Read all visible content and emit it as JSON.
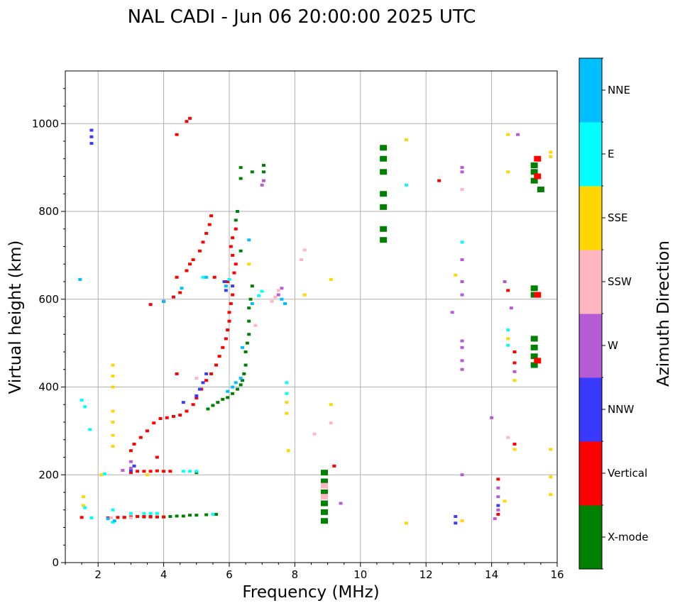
{
  "chart_data": {
    "type": "scatter",
    "title": "NAL CADI - Jun 06 20:00:00 2025 UTC",
    "xlabel": "Frequency (MHz)",
    "ylabel": "Virtual height (km)",
    "xlim": [
      1,
      16
    ],
    "ylim": [
      0,
      1120
    ],
    "xticks": [
      "2",
      "4",
      "6",
      "8",
      "10",
      "12",
      "14",
      "16"
    ],
    "yticks": [
      "0",
      "200",
      "400",
      "600",
      "800",
      "1000"
    ],
    "grid": true,
    "colorbar": {
      "label": "Azimuth Direction",
      "categories": [
        "X-mode",
        "Vertical",
        "NNW",
        "W",
        "SSW",
        "SSE",
        "E",
        "NNE"
      ],
      "colors": [
        "#008000",
        "#ff0000",
        "#3a3aff",
        "#b65ad6",
        "#ffb6c1",
        "#ffd700",
        "#00ffff",
        "#00bfff"
      ]
    },
    "series": [
      {
        "name": "X-mode",
        "points": [
          [
            2.8,
            103
          ],
          [
            3.0,
            104
          ],
          [
            3.2,
            105
          ],
          [
            3.4,
            104
          ],
          [
            3.6,
            105
          ],
          [
            3.8,
            104
          ],
          [
            4.0,
            104
          ],
          [
            4.2,
            105
          ],
          [
            4.4,
            106
          ],
          [
            4.6,
            106
          ],
          [
            4.8,
            108
          ],
          [
            5.0,
            108
          ],
          [
            5.3,
            109
          ],
          [
            5.6,
            110
          ],
          [
            5.0,
            205
          ],
          [
            5.35,
            350
          ],
          [
            5.5,
            358
          ],
          [
            5.65,
            365
          ],
          [
            5.8,
            372
          ],
          [
            5.95,
            376
          ],
          [
            6.1,
            385
          ],
          [
            6.25,
            395
          ],
          [
            6.35,
            405
          ],
          [
            6.4,
            415
          ],
          [
            6.45,
            430
          ],
          [
            6.5,
            450
          ],
          [
            6.5,
            480
          ],
          [
            6.55,
            500
          ],
          [
            6.6,
            520
          ],
          [
            6.6,
            550
          ],
          [
            6.6,
            580
          ],
          [
            6.65,
            600
          ],
          [
            6.7,
            630
          ],
          [
            6.35,
            710
          ],
          [
            6.2,
            780
          ],
          [
            6.25,
            800
          ],
          [
            6.35,
            900
          ],
          [
            6.35,
            875
          ],
          [
            6.7,
            890
          ],
          [
            7.05,
            905
          ],
          [
            7.05,
            890
          ],
          [
            8.9,
            95
          ],
          [
            8.9,
            115
          ],
          [
            8.9,
            135
          ],
          [
            8.9,
            160
          ],
          [
            8.9,
            185
          ],
          [
            8.9,
            205
          ],
          [
            10.7,
            735
          ],
          [
            10.7,
            760
          ],
          [
            10.7,
            810
          ],
          [
            10.7,
            840
          ],
          [
            10.7,
            890
          ],
          [
            10.7,
            920
          ],
          [
            10.7,
            945
          ],
          [
            15.3,
            450
          ],
          [
            15.3,
            470
          ],
          [
            15.3,
            490
          ],
          [
            15.3,
            510
          ],
          [
            15.3,
            610
          ],
          [
            15.3,
            625
          ],
          [
            15.3,
            870
          ],
          [
            15.3,
            890
          ],
          [
            15.3,
            905
          ],
          [
            15.5,
            850
          ]
        ]
      },
      {
        "name": "Vertical",
        "points": [
          [
            1.5,
            103
          ],
          [
            2.3,
            102
          ],
          [
            2.6,
            103
          ],
          [
            2.8,
            103
          ],
          [
            3.0,
            104
          ],
          [
            3.2,
            105
          ],
          [
            3.4,
            105
          ],
          [
            3.6,
            104
          ],
          [
            3.8,
            104
          ],
          [
            4.0,
            104
          ],
          [
            3.0,
            205
          ],
          [
            3.2,
            208
          ],
          [
            3.4,
            208
          ],
          [
            3.6,
            208
          ],
          [
            3.8,
            209
          ],
          [
            4.0,
            208
          ],
          [
            4.2,
            208
          ],
          [
            3.0,
            255
          ],
          [
            3.1,
            270
          ],
          [
            3.3,
            285
          ],
          [
            3.5,
            300
          ],
          [
            3.7,
            318
          ],
          [
            3.9,
            328
          ],
          [
            4.1,
            330
          ],
          [
            4.3,
            333
          ],
          [
            4.5,
            336
          ],
          [
            4.7,
            345
          ],
          [
            4.9,
            360
          ],
          [
            5.0,
            375
          ],
          [
            5.15,
            395
          ],
          [
            5.3,
            415
          ],
          [
            5.45,
            430
          ],
          [
            4.4,
            430
          ],
          [
            3.8,
            240
          ],
          [
            5.6,
            450
          ],
          [
            5.7,
            470
          ],
          [
            5.8,
            490
          ],
          [
            5.9,
            510
          ],
          [
            5.95,
            530
          ],
          [
            6.0,
            550
          ],
          [
            6.0,
            570
          ],
          [
            6.05,
            590
          ],
          [
            6.1,
            610
          ],
          [
            5.95,
            640
          ],
          [
            5.55,
            650
          ],
          [
            6.15,
            660
          ],
          [
            6.2,
            680
          ],
          [
            6.1,
            700
          ],
          [
            6.05,
            720
          ],
          [
            6.1,
            740
          ],
          [
            6.2,
            760
          ],
          [
            3.6,
            588
          ],
          [
            4.0,
            595
          ],
          [
            4.3,
            605
          ],
          [
            4.5,
            615
          ],
          [
            4.4,
            650
          ],
          [
            4.7,
            665
          ],
          [
            4.8,
            680
          ],
          [
            4.9,
            690
          ],
          [
            5.1,
            710
          ],
          [
            5.2,
            730
          ],
          [
            5.3,
            750
          ],
          [
            5.4,
            770
          ],
          [
            5.45,
            790
          ],
          [
            4.7,
            1005
          ],
          [
            4.8,
            1012
          ],
          [
            4.4,
            975
          ],
          [
            9.2,
            220
          ],
          [
            12.4,
            870
          ],
          [
            14.2,
            190
          ],
          [
            14.2,
            110
          ],
          [
            14.5,
            620
          ],
          [
            14.7,
            270
          ],
          [
            14.7,
            455
          ],
          [
            14.7,
            480
          ],
          [
            15.4,
            460
          ],
          [
            15.4,
            610
          ],
          [
            15.4,
            880
          ],
          [
            15.4,
            920
          ]
        ]
      },
      {
        "name": "NNW",
        "points": [
          [
            3.0,
            210
          ],
          [
            3.1,
            220
          ],
          [
            4.6,
            365
          ],
          [
            5.0,
            380
          ],
          [
            5.1,
            395
          ],
          [
            5.2,
            410
          ],
          [
            5.3,
            430
          ],
          [
            5.85,
            640
          ],
          [
            5.9,
            620
          ],
          [
            6.1,
            630
          ],
          [
            12.9,
            90
          ],
          [
            12.9,
            105
          ],
          [
            14.2,
            130
          ],
          [
            1.8,
            955
          ],
          [
            1.8,
            970
          ],
          [
            1.8,
            985
          ]
        ]
      },
      {
        "name": "W",
        "points": [
          [
            2.75,
            210
          ],
          [
            3.0,
            215
          ],
          [
            3.0,
            230
          ],
          [
            7.0,
            860
          ],
          [
            7.05,
            870
          ],
          [
            13.1,
            200
          ],
          [
            13.1,
            440
          ],
          [
            13.1,
            460
          ],
          [
            13.1,
            490
          ],
          [
            13.1,
            505
          ],
          [
            12.8,
            570
          ],
          [
            13.1,
            610
          ],
          [
            13.1,
            640
          ],
          [
            13.1,
            690
          ],
          [
            13.1,
            890
          ],
          [
            13.1,
            900
          ],
          [
            14.1,
            100
          ],
          [
            14.2,
            120
          ],
          [
            14.2,
            150
          ],
          [
            14.2,
            170
          ],
          [
            14.4,
            640
          ],
          [
            14.6,
            580
          ],
          [
            14.7,
            435
          ],
          [
            14.8,
            975
          ],
          [
            9.4,
            135
          ],
          [
            14.0,
            330
          ],
          [
            7.5,
            610
          ],
          [
            7.6,
            625
          ]
        ]
      },
      {
        "name": "SSW",
        "points": [
          [
            2.4,
            102
          ],
          [
            3.0,
            102
          ],
          [
            5.0,
            420
          ],
          [
            6.8,
            540
          ],
          [
            7.3,
            595
          ],
          [
            7.4,
            605
          ],
          [
            7.5,
            620
          ],
          [
            8.2,
            690
          ],
          [
            8.3,
            712
          ],
          [
            8.6,
            293
          ],
          [
            8.9,
            150
          ],
          [
            8.9,
            175
          ],
          [
            9.1,
            318
          ],
          [
            13.1,
            850
          ],
          [
            14.5,
            285
          ]
        ]
      },
      {
        "name": "SSE",
        "points": [
          [
            2.45,
            265
          ],
          [
            2.45,
            290
          ],
          [
            2.45,
            320
          ],
          [
            2.45,
            345
          ],
          [
            2.45,
            400
          ],
          [
            2.45,
            425
          ],
          [
            2.45,
            450
          ],
          [
            1.55,
            130
          ],
          [
            1.55,
            150
          ],
          [
            2.1,
            200
          ],
          [
            3.5,
            200
          ],
          [
            7.75,
            340
          ],
          [
            7.75,
            365
          ],
          [
            7.8,
            255
          ],
          [
            8.3,
            610
          ],
          [
            9.1,
            360
          ],
          [
            9.1,
            645
          ],
          [
            11.4,
            90
          ],
          [
            11.4,
            963
          ],
          [
            12.9,
            655
          ],
          [
            13.1,
            95
          ],
          [
            14.4,
            140
          ],
          [
            14.5,
            510
          ],
          [
            14.5,
            890
          ],
          [
            14.5,
            975
          ],
          [
            14.7,
            258
          ],
          [
            14.7,
            415
          ],
          [
            15.8,
            155
          ],
          [
            15.8,
            195
          ],
          [
            15.8,
            258
          ],
          [
            15.8,
            935
          ],
          [
            15.8,
            925
          ],
          [
            6.6,
            680
          ]
        ]
      },
      {
        "name": "E",
        "points": [
          [
            1.6,
            125
          ],
          [
            1.8,
            102
          ],
          [
            2.45,
            92
          ],
          [
            2.45,
            120
          ],
          [
            3.0,
            112
          ],
          [
            3.4,
            112
          ],
          [
            3.6,
            112
          ],
          [
            3.8,
            112
          ],
          [
            4.6,
            208
          ],
          [
            4.8,
            208
          ],
          [
            5.0,
            208
          ],
          [
            1.5,
            370
          ],
          [
            1.6,
            355
          ],
          [
            1.75,
            303
          ],
          [
            2.2,
            202
          ],
          [
            5.2,
            650
          ],
          [
            6.0,
            645
          ],
          [
            6.9,
            608
          ],
          [
            7.0,
            618
          ],
          [
            7.75,
            385
          ],
          [
            7.75,
            410
          ],
          [
            13.1,
            730
          ],
          [
            14.5,
            495
          ],
          [
            14.5,
            530
          ],
          [
            11.4,
            860
          ],
          [
            5.5,
            110
          ]
        ]
      },
      {
        "name": "NNE",
        "points": [
          [
            1.45,
            645
          ],
          [
            4.0,
            595
          ],
          [
            4.55,
            625
          ],
          [
            5.95,
            390
          ],
          [
            6.1,
            400
          ],
          [
            6.2,
            410
          ],
          [
            6.35,
            420
          ],
          [
            6.4,
            490
          ],
          [
            5.9,
            630
          ],
          [
            6.7,
            590
          ],
          [
            6.6,
            735
          ],
          [
            7.7,
            590
          ],
          [
            7.6,
            600
          ],
          [
            5.3,
            650
          ],
          [
            2.3,
            100
          ],
          [
            2.5,
            95
          ]
        ]
      }
    ]
  }
}
